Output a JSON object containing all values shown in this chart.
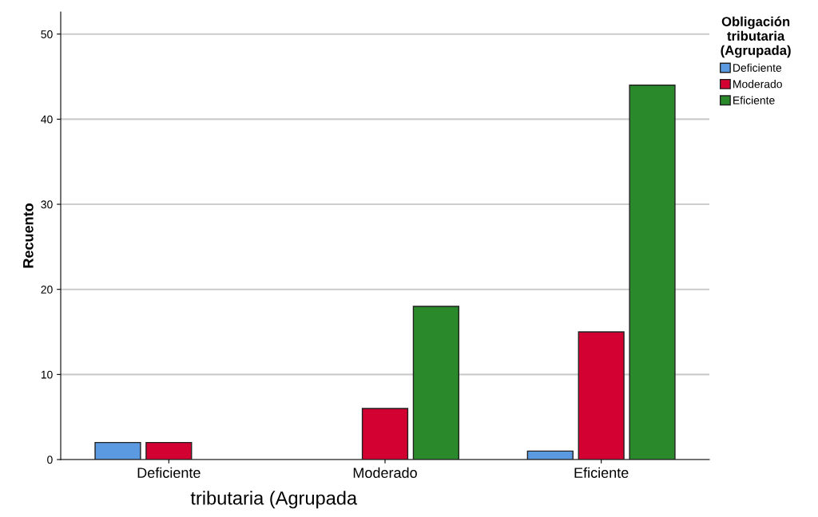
{
  "chart_data": {
    "type": "bar",
    "xlabel": "tributaria (Agrupada",
    "ylabel": "Recuento",
    "legend_title": "Obligación\ntributaria\n(Agrupada)",
    "categories": [
      "Deficiente",
      "Moderado",
      "Eficiente"
    ],
    "series": [
      {
        "name": "Deficiente",
        "color": "#5b9ae1",
        "values": [
          2,
          null,
          1
        ]
      },
      {
        "name": "Moderado",
        "color": "#d20131",
        "values": [
          2,
          6,
          15
        ]
      },
      {
        "name": "Eficiente",
        "color": "#2a892a",
        "values": [
          null,
          18,
          44
        ]
      }
    ],
    "ylim": [
      0,
      52.6
    ],
    "yticks": [
      0,
      10,
      20,
      30,
      40,
      50
    ],
    "grid": "y",
    "legend": "top right"
  }
}
